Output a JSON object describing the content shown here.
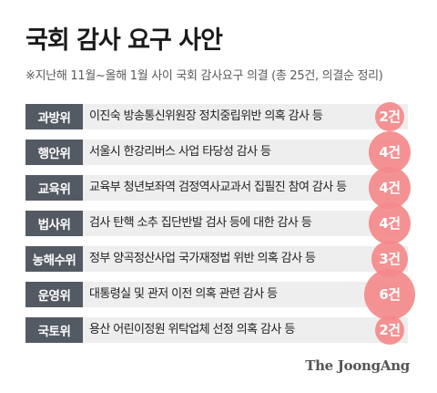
{
  "title": "국회 감사 요구 사안",
  "subtitle": "※지난해 11월~올해 1월 사이 국회 감사요구 의결 (총 25건, 의결순 정리)",
  "brand": "The JoongAng",
  "colors": {
    "category_bg": "#545a63",
    "row_bg": "#eeeeee",
    "bubble": "#f4898b",
    "count_text": "#ffffff"
  },
  "chart_data": {
    "type": "table",
    "title": "국회 감사 요구 사안",
    "subtitle": "※지난해 11월~올해 1월 사이 국회 감사요구 의결 (총 25건, 의결순 정리)",
    "rows": [
      {
        "committee": "과방위",
        "description": "이진숙 방송통신위원장 정치중립위반 의혹 감사 등",
        "count": 2,
        "count_label": "2건"
      },
      {
        "committee": "행안위",
        "description": "서울시 한강리버스 사업 타당성 감사 등",
        "count": 4,
        "count_label": "4건"
      },
      {
        "committee": "교육위",
        "description": "교육부 청년보좌역 검정역사교과서 집필진 참여 감사 등",
        "count": 4,
        "count_label": "4건"
      },
      {
        "committee": "법사위",
        "description": "검사 탄핵 소추 집단반발 검사 등에 대한 감사 등",
        "count": 4,
        "count_label": "4건"
      },
      {
        "committee": "농해수위",
        "description": "정부 양곡정산사업 국가재정법 위반 의혹 감사 등",
        "count": 3,
        "count_label": "3건"
      },
      {
        "committee": "운영위",
        "description": "대통령실 및 관저 이전 의혹 관련 감사 등",
        "count": 6,
        "count_label": "6건"
      },
      {
        "committee": "국토위",
        "description": "용산 어린이정원 위탁업체 선정 의혹 감사 등",
        "count": 2,
        "count_label": "2건"
      }
    ]
  }
}
